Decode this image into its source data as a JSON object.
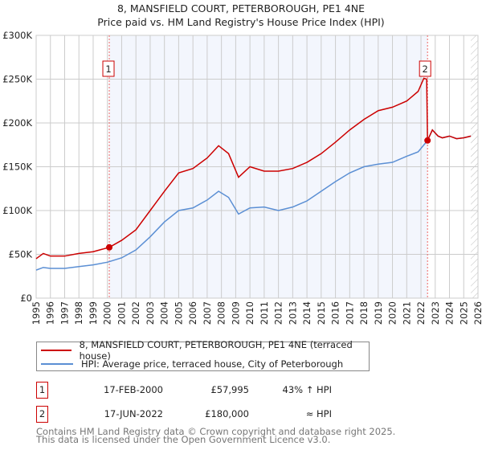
{
  "title_line1": "8, MANSFIELD COURT, PETERBOROUGH, PE1 4NE",
  "title_line2": "Price paid vs. HM Land Registry's House Price Index (HPI)",
  "chart_data": {
    "type": "line",
    "title": "8, MANSFIELD COURT, PETERBOROUGH, PE1 4NE — Price paid vs. HM Land Registry's House Price Index (HPI)",
    "xlim": [
      1995,
      2026
    ],
    "ylim": [
      0,
      300000
    ],
    "yticks": [
      {
        "v": 0,
        "label": "£0"
      },
      {
        "v": 50000,
        "label": "£50K"
      },
      {
        "v": 100000,
        "label": "£100K"
      },
      {
        "v": 150000,
        "label": "£150K"
      },
      {
        "v": 200000,
        "label": "£200K"
      },
      {
        "v": 250000,
        "label": "£250K"
      },
      {
        "v": 300000,
        "label": "£300K"
      }
    ],
    "xticks": [
      "1995",
      "1996",
      "1997",
      "1998",
      "1999",
      "2000",
      "2001",
      "2002",
      "2003",
      "2004",
      "2005",
      "2006",
      "2007",
      "2008",
      "2009",
      "2010",
      "2011",
      "2012",
      "2013",
      "2014",
      "2015",
      "2016",
      "2017",
      "2018",
      "2019",
      "2020",
      "2021",
      "2022",
      "2023",
      "2024",
      "2025",
      "2026"
    ],
    "grid": true,
    "shaded_range": [
      2000.13,
      2022.46
    ],
    "forecast_hatch_from": 2025.5,
    "series": [
      {
        "name": "8, MANSFIELD COURT, PETERBOROUGH, PE1 4NE (terraced house)",
        "color": "#cc0000",
        "x": [
          1995,
          1995.5,
          1996,
          1997,
          1998,
          1999,
          2000.13,
          2001,
          2002,
          2003,
          2004,
          2005,
          2006,
          2007,
          2007.8,
          2008.5,
          2009.2,
          2010,
          2011,
          2012,
          2013,
          2014,
          2015,
          2016,
          2017,
          2018,
          2019,
          2020,
          2021,
          2021.8,
          2022.2,
          2022.4,
          2022.46,
          2022.8,
          2023.2,
          2023.5,
          2024,
          2024.5,
          2025,
          2025.5
        ],
        "y": [
          45000,
          51000,
          48000,
          48000,
          51000,
          53000,
          57995,
          66000,
          78000,
          100000,
          122000,
          143000,
          148000,
          160000,
          174000,
          165000,
          138000,
          150000,
          145000,
          145000,
          148000,
          155000,
          165000,
          178000,
          192000,
          204000,
          214000,
          218000,
          225000,
          236000,
          251000,
          250000,
          180000,
          192000,
          185000,
          183000,
          185000,
          182000,
          183000,
          185000
        ]
      },
      {
        "name": "HPI: Average price, terraced house, City of Peterborough",
        "color": "#5b8fd4",
        "x": [
          1995,
          1995.5,
          1996,
          1997,
          1998,
          1999,
          2000,
          2001,
          2002,
          2003,
          2004,
          2005,
          2006,
          2007,
          2007.8,
          2008.5,
          2009.2,
          2010,
          2011,
          2012,
          2013,
          2014,
          2015,
          2016,
          2017,
          2018,
          2019,
          2020,
          2021,
          2021.8,
          2022.46,
          2022.8,
          2023.2,
          2023.5,
          2024,
          2024.5,
          2025,
          2025.5
        ],
        "y": [
          32000,
          35000,
          34000,
          34000,
          36000,
          38000,
          41000,
          46000,
          55000,
          70000,
          87000,
          100000,
          103000,
          112000,
          122000,
          115000,
          96000,
          103000,
          104000,
          100000,
          104000,
          111000,
          122000,
          133000,
          143000,
          150000,
          153000,
          155000,
          162000,
          167000,
          180000,
          192000,
          185000,
          183000,
          185000,
          182000,
          183000,
          185000
        ]
      }
    ],
    "markers": [
      {
        "label": "1",
        "x": 2000.13,
        "y": 57995
      },
      {
        "label": "2",
        "x": 2022.46,
        "y": 180000
      }
    ]
  },
  "legend": [
    {
      "label": "8, MANSFIELD COURT, PETERBOROUGH, PE1 4NE (terraced house)",
      "color": "#cc0000"
    },
    {
      "label": "HPI: Average price, terraced house, City of Peterborough",
      "color": "#5b8fd4"
    }
  ],
  "transactions": [
    {
      "num": "1",
      "date": "17-FEB-2000",
      "price": "£57,995",
      "hpi": "43% ↑ HPI"
    },
    {
      "num": "2",
      "date": "17-JUN-2022",
      "price": "£180,000",
      "hpi": "≈ HPI"
    }
  ],
  "footer": {
    "line1": "Contains HM Land Registry data © Crown copyright and database right 2025.",
    "line2": "This data is licensed under the Open Government Licence v3.0."
  }
}
